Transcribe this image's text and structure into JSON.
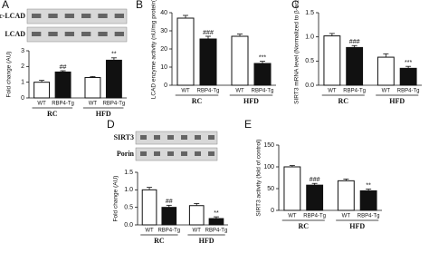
{
  "chart_data": [
    {
      "type": "bar",
      "panel": "A",
      "blot_labels": [
        "ac-LCAD",
        "LCAD"
      ],
      "y_label": "Fold change (AU)",
      "categories": [
        "WT",
        "RBP4-Tg",
        "WT",
        "RBP4-Tg"
      ],
      "groups": [
        "RC",
        "HFD"
      ],
      "values": [
        1.0,
        1.65,
        1.3,
        2.4
      ],
      "errors": [
        0.12,
        0.08,
        0.06,
        0.15
      ],
      "colors": [
        "#ffffff",
        "#111111",
        "#ffffff",
        "#111111"
      ],
      "annotations": [
        null,
        "##",
        null,
        "**"
      ],
      "ylim": [
        0,
        3
      ],
      "yticks": [
        0,
        1,
        2,
        3
      ]
    },
    {
      "type": "bar",
      "panel": "B",
      "y_label": "LCAD enzyme activity (nU/mg protein)",
      "categories": [
        "WT",
        "RBP4-Tg",
        "WT",
        "RBP4-Tg"
      ],
      "groups": [
        "RC",
        "HFD"
      ],
      "values": [
        37,
        25.5,
        27,
        12
      ],
      "errors": [
        1.5,
        1.5,
        1.2,
        1.2
      ],
      "colors": [
        "#ffffff",
        "#111111",
        "#ffffff",
        "#111111"
      ],
      "annotations": [
        null,
        "###",
        null,
        "***"
      ],
      "ylim": [
        0,
        40
      ],
      "yticks": [
        0,
        10,
        20,
        30,
        40
      ]
    },
    {
      "type": "bar",
      "panel": "C",
      "y_label": "SIRT3 mRNA level (Normalized to β-actin)",
      "categories": [
        "WT",
        "RBP4-Tg",
        "WT",
        "RBP4-Tg"
      ],
      "groups": [
        "RC",
        "HFD"
      ],
      "values": [
        1.02,
        0.78,
        0.58,
        0.35
      ],
      "errors": [
        0.05,
        0.04,
        0.07,
        0.04
      ],
      "colors": [
        "#ffffff",
        "#111111",
        "#ffffff",
        "#111111"
      ],
      "annotations": [
        null,
        "###",
        null,
        "***"
      ],
      "ylim": [
        0,
        1.5
      ],
      "yticks": [
        {
          "value": 0,
          "label": "0.0"
        },
        0.5,
        {
          "value": 1,
          "label": "1.0"
        },
        1.5
      ]
    },
    {
      "type": "bar",
      "panel": "D",
      "blot_labels": [
        "SIRT3",
        "Porin"
      ],
      "y_label": "Fold change (AU)",
      "categories": [
        "WT",
        "RBP4-Tg",
        "WT",
        "RBP4-Tg"
      ],
      "groups": [
        "RC",
        "HFD"
      ],
      "values": [
        1.0,
        0.5,
        0.55,
        0.18
      ],
      "errors": [
        0.07,
        0.06,
        0.06,
        0.05
      ],
      "colors": [
        "#ffffff",
        "#111111",
        "#ffffff",
        "#111111"
      ],
      "annotations": [
        null,
        "##",
        null,
        "**"
      ],
      "ylim": [
        0,
        1.5
      ],
      "yticks": [
        {
          "value": 0,
          "label": "0.0"
        },
        0.5,
        {
          "value": 1,
          "label": "1.0"
        },
        1.5
      ]
    },
    {
      "type": "bar",
      "panel": "E",
      "y_label": "SIRT3 activity (fold of control)",
      "categories": [
        "WT",
        "RBP4-Tg",
        "WT",
        "RBP4-Tg"
      ],
      "groups": [
        "RC",
        "HFD"
      ],
      "values": [
        100,
        58,
        68,
        45
      ],
      "errors": [
        3,
        4,
        4,
        4
      ],
      "colors": [
        "#ffffff",
        "#111111",
        "#ffffff",
        "#111111"
      ],
      "annotations": [
        null,
        "###",
        null,
        "**"
      ],
      "ylim": [
        0,
        150
      ],
      "yticks": [
        0,
        50,
        100,
        150
      ]
    }
  ]
}
